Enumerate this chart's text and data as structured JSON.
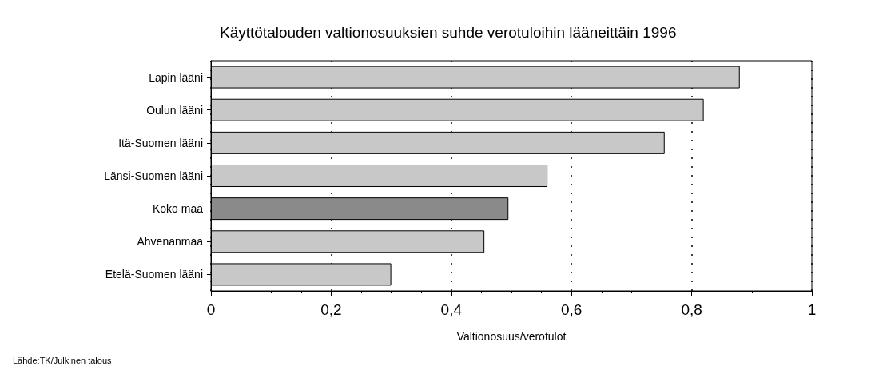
{
  "chart_data": {
    "type": "bar",
    "orientation": "horizontal",
    "title": "Käyttötalouden valtionosuuksien suhde verotuloihin lääneittäin 1996",
    "categories": [
      "Lapin lääni",
      "Oulun lääni",
      "Itä-Suomen lääni",
      "Länsi-Suomen lääni",
      "Koko maa",
      "Ahvenanmaa",
      "Etelä-Suomen lääni"
    ],
    "values": [
      0.88,
      0.82,
      0.755,
      0.56,
      0.495,
      0.455,
      0.3
    ],
    "colors": [
      "#c8c8c8",
      "#c8c8c8",
      "#c8c8c8",
      "#c8c8c8",
      "#8a8a8a",
      "#c8c8c8",
      "#c8c8c8"
    ],
    "xlim": [
      0,
      1
    ],
    "xticks": [
      {
        "value": 0,
        "label": "0"
      },
      {
        "value": 0.2,
        "label": "0,2"
      },
      {
        "value": 0.4,
        "label": "0,4"
      },
      {
        "value": 0.6,
        "label": "0,6"
      },
      {
        "value": 0.8,
        "label": "0,8"
      },
      {
        "value": 1,
        "label": "1"
      }
    ],
    "xlabel": "Valtionosuus/verotulot",
    "grid": "x",
    "annotations": [
      "Lähde:TK/Julkinen talous"
    ]
  }
}
